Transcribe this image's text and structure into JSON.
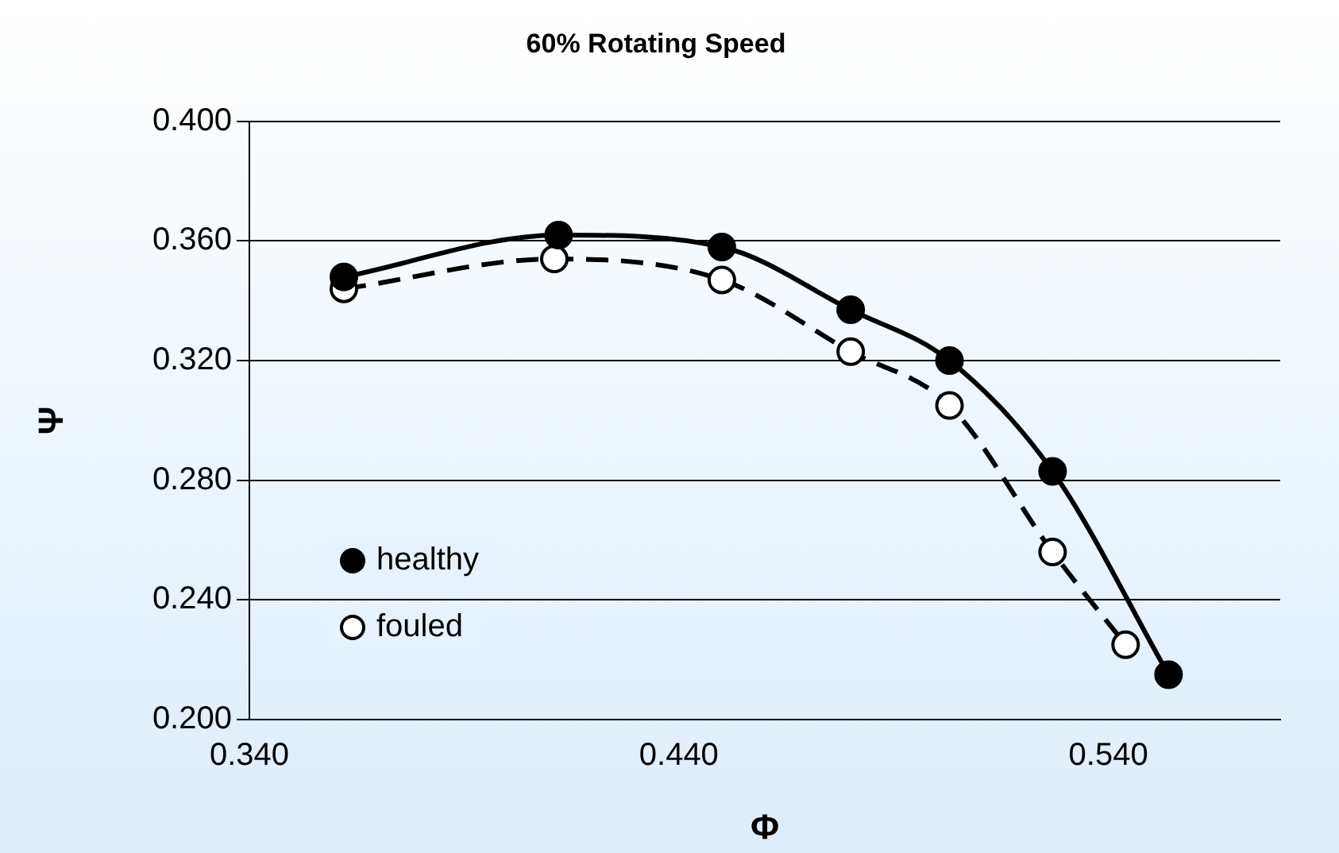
{
  "chart_data": {
    "type": "line",
    "title": "60% Rotating Speed",
    "xlabel": "Φ",
    "ylabel": "Ψ",
    "xlim": [
      0.34,
      0.58
    ],
    "xticks": [
      {
        "value": 0.34,
        "label": "0.340"
      },
      {
        "value": 0.44,
        "label": "0.440"
      },
      {
        "value": 0.54,
        "label": "0.540"
      }
    ],
    "ylim": [
      0.2,
      0.4
    ],
    "yticks": [
      {
        "value": 0.2,
        "label": "0.200"
      },
      {
        "value": 0.24,
        "label": "0.240"
      },
      {
        "value": 0.28,
        "label": "0.280"
      },
      {
        "value": 0.32,
        "label": "0.320"
      },
      {
        "value": 0.36,
        "label": "0.360"
      },
      {
        "value": 0.4,
        "label": "0.400"
      }
    ],
    "grid": "y",
    "legend": "bottom left",
    "marker": "circle",
    "series": [
      {
        "name": "healthy",
        "color": "#000000",
        "line_style": "solid",
        "x": [
          0.362,
          0.412,
          0.45,
          0.48,
          0.503,
          0.527,
          0.554
        ],
        "values": [
          0.348,
          0.362,
          0.358,
          0.337,
          0.32,
          0.283,
          0.215
        ]
      },
      {
        "name": "fouled",
        "color": "#000000",
        "line_style": "dashed",
        "x": [
          0.362,
          0.411,
          0.45,
          0.48,
          0.503,
          0.527,
          0.544
        ],
        "values": [
          0.344,
          0.354,
          0.347,
          0.323,
          0.305,
          0.256,
          0.225
        ]
      }
    ]
  }
}
